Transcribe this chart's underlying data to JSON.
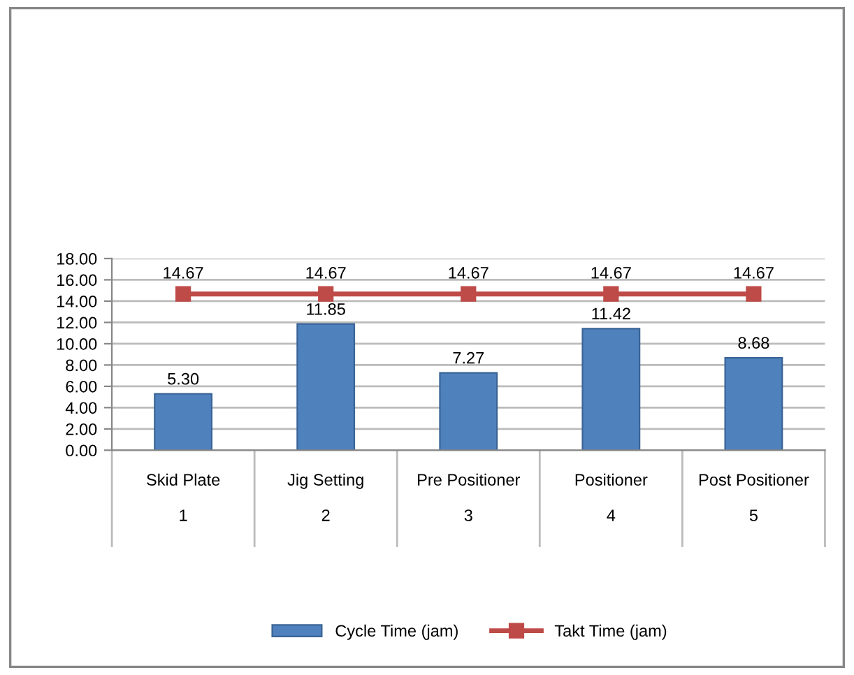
{
  "chart_data": {
    "type": "bar",
    "categories": [
      "Skid Plate\n\n1",
      "Jig Setting\n\n2",
      "Pre Positioner\n\n3",
      "Positioner\n\n4",
      "Post Positioner\n\n5"
    ],
    "series": [
      {
        "name": "Cycle Time (jam)",
        "color": "#4f81bd",
        "values": [
          5.3,
          11.85,
          7.27,
          11.42,
          8.68
        ],
        "value_labels": [
          "5.30",
          "11.85",
          "7.27",
          "11.42",
          "8.68"
        ]
      },
      {
        "name": "Takt Time (jam)",
        "type": "line",
        "color": "#be4b48",
        "marker": "square",
        "values": [
          14.67,
          14.67,
          14.67,
          14.67,
          14.67
        ],
        "value_labels": [
          "14.67",
          "14.67",
          "14.67",
          "14.67",
          "14.67"
        ]
      }
    ],
    "ylim": [
      0,
      18
    ],
    "yticks": [
      {
        "value": 0,
        "label": "0.00"
      },
      {
        "value": 2,
        "label": "2.00"
      },
      {
        "value": 4,
        "label": "4.00"
      },
      {
        "value": 6,
        "label": "6.00"
      },
      {
        "value": 8,
        "label": "8.00"
      },
      {
        "value": 10,
        "label": "10.00"
      },
      {
        "value": 12,
        "label": "12.00"
      },
      {
        "value": 14,
        "label": "14.00"
      },
      {
        "value": 16,
        "label": "16.00"
      },
      {
        "value": 18,
        "label": "18.00"
      }
    ],
    "grid": "y",
    "legend": "bottom"
  }
}
